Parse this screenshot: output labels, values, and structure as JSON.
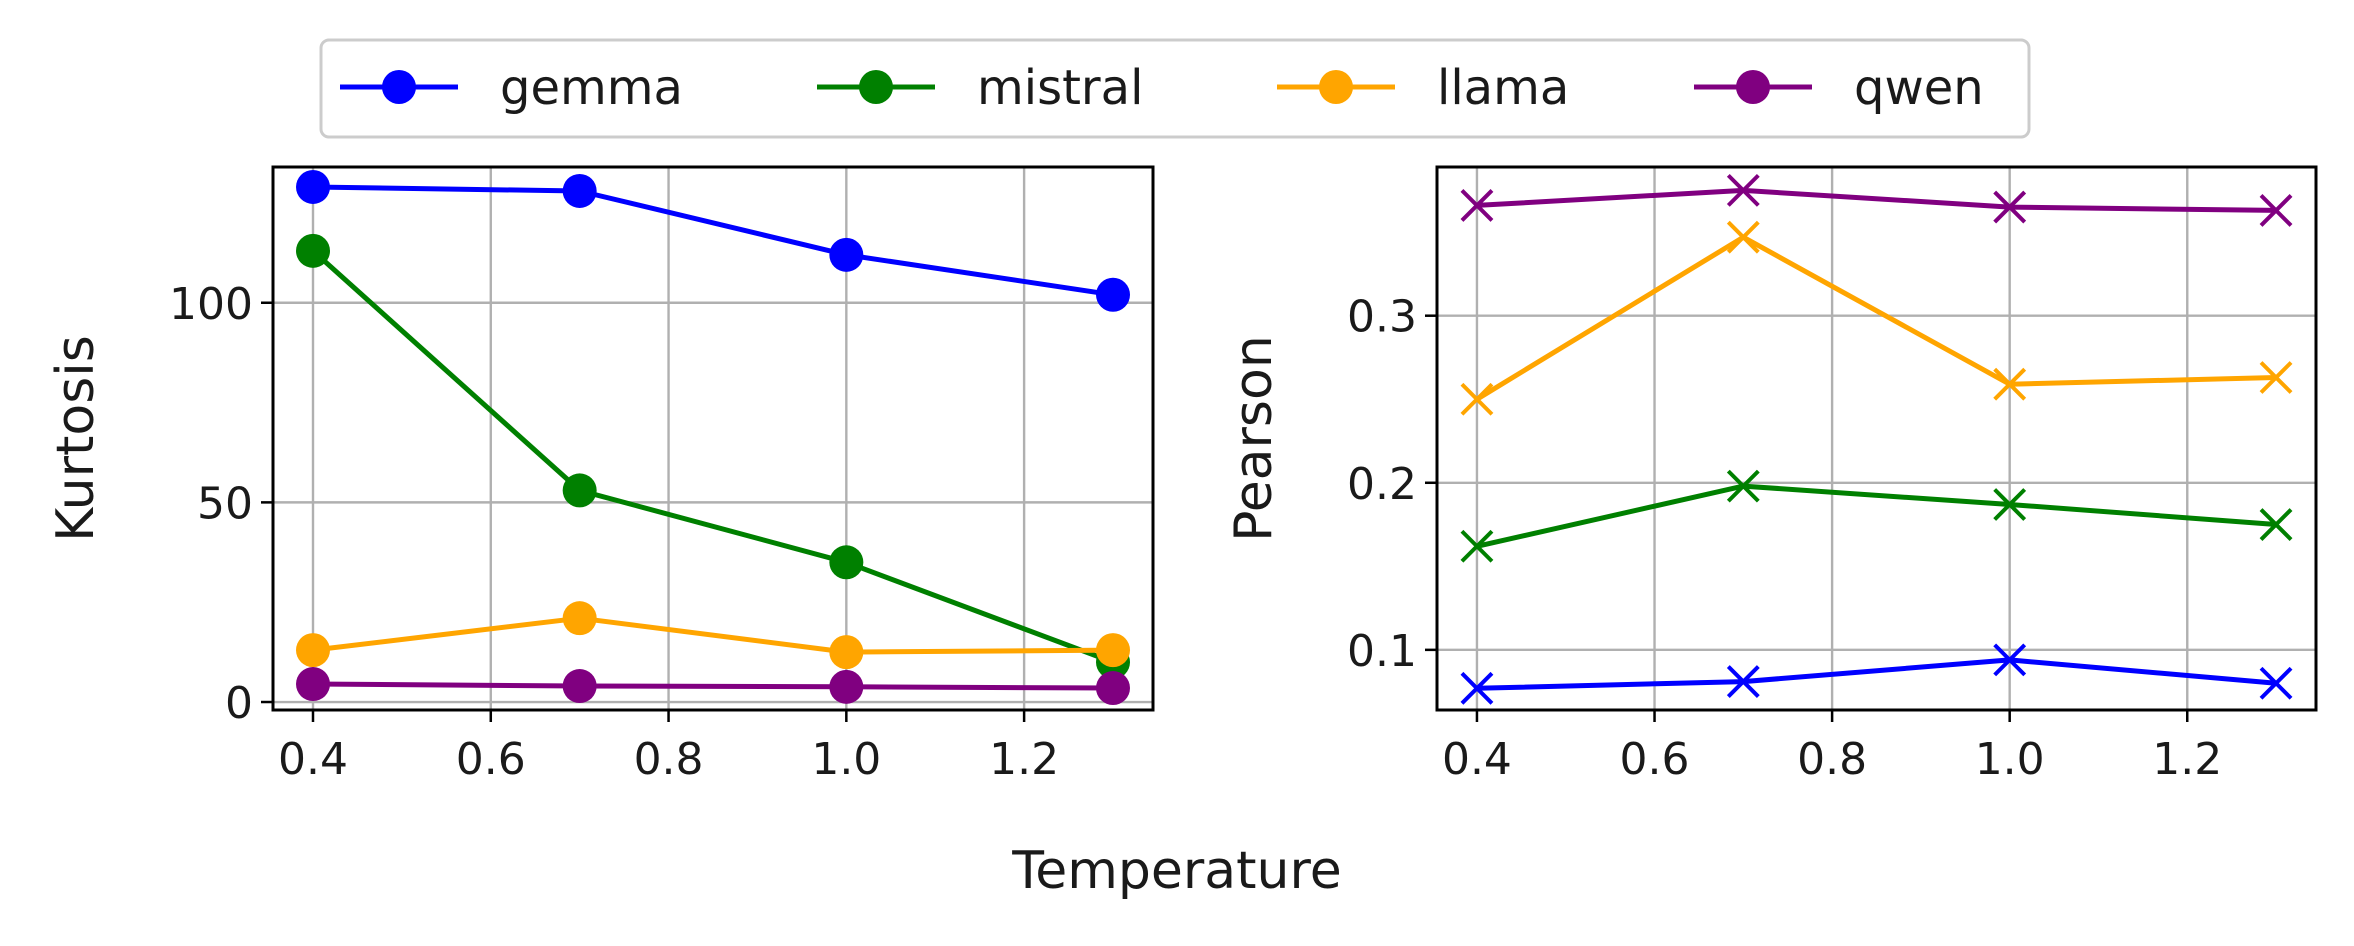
{
  "figure": {
    "shared_xlabel": "Temperature"
  },
  "legend": {
    "placement": "top-center",
    "entries": [
      {
        "name": "gemma",
        "color": "#0000ff"
      },
      {
        "name": "mistral",
        "color": "#008000"
      },
      {
        "name": "llama",
        "color": "#ffa500"
      },
      {
        "name": "qwen",
        "color": "#800080"
      }
    ]
  },
  "chart_data": [
    {
      "type": "line",
      "title": "",
      "xlabel": "Temperature",
      "ylabel": "Kurtosis",
      "marker": "circle",
      "grid": true,
      "x": [
        0.4,
        0.7,
        1.0,
        1.3
      ],
      "xlim": [
        0.355,
        1.345
      ],
      "ylim": [
        -2,
        134
      ],
      "xticks": [
        0.4,
        0.6,
        0.8,
        1.0,
        1.2
      ],
      "xtick_labels": [
        "0.4",
        "0.6",
        "0.8",
        "1.0",
        "1.2"
      ],
      "yticks": [
        0,
        50,
        100
      ],
      "ytick_labels": [
        "0",
        "50",
        "100"
      ],
      "series": [
        {
          "name": "gemma",
          "color": "#0000ff",
          "values": [
            129,
            128,
            112,
            102
          ]
        },
        {
          "name": "mistral",
          "color": "#008000",
          "values": [
            113,
            53,
            35,
            10
          ]
        },
        {
          "name": "llama",
          "color": "#ffa500",
          "values": [
            13,
            21,
            12.5,
            13
          ]
        },
        {
          "name": "qwen",
          "color": "#800080",
          "values": [
            4.5,
            4,
            3.8,
            3.5
          ]
        }
      ]
    },
    {
      "type": "line",
      "title": "",
      "xlabel": "Temperature",
      "ylabel": "Pearson",
      "marker": "x",
      "grid": true,
      "x": [
        0.4,
        0.7,
        1.0,
        1.3
      ],
      "xlim": [
        0.355,
        1.345
      ],
      "ylim": [
        0.064,
        0.389
      ],
      "xticks": [
        0.4,
        0.6,
        0.8,
        1.0,
        1.2
      ],
      "xtick_labels": [
        "0.4",
        "0.6",
        "0.8",
        "1.0",
        "1.2"
      ],
      "yticks": [
        0.1,
        0.2,
        0.3
      ],
      "ytick_labels": [
        "0.1",
        "0.2",
        "0.3"
      ],
      "series": [
        {
          "name": "gemma",
          "color": "#0000ff",
          "values": [
            0.077,
            0.081,
            0.094,
            0.08
          ]
        },
        {
          "name": "mistral",
          "color": "#008000",
          "values": [
            0.162,
            0.198,
            0.187,
            0.175
          ]
        },
        {
          "name": "llama",
          "color": "#ffa500",
          "values": [
            0.25,
            0.347,
            0.259,
            0.263
          ]
        },
        {
          "name": "qwen",
          "color": "#800080",
          "values": [
            0.366,
            0.375,
            0.365,
            0.363
          ]
        }
      ]
    }
  ]
}
